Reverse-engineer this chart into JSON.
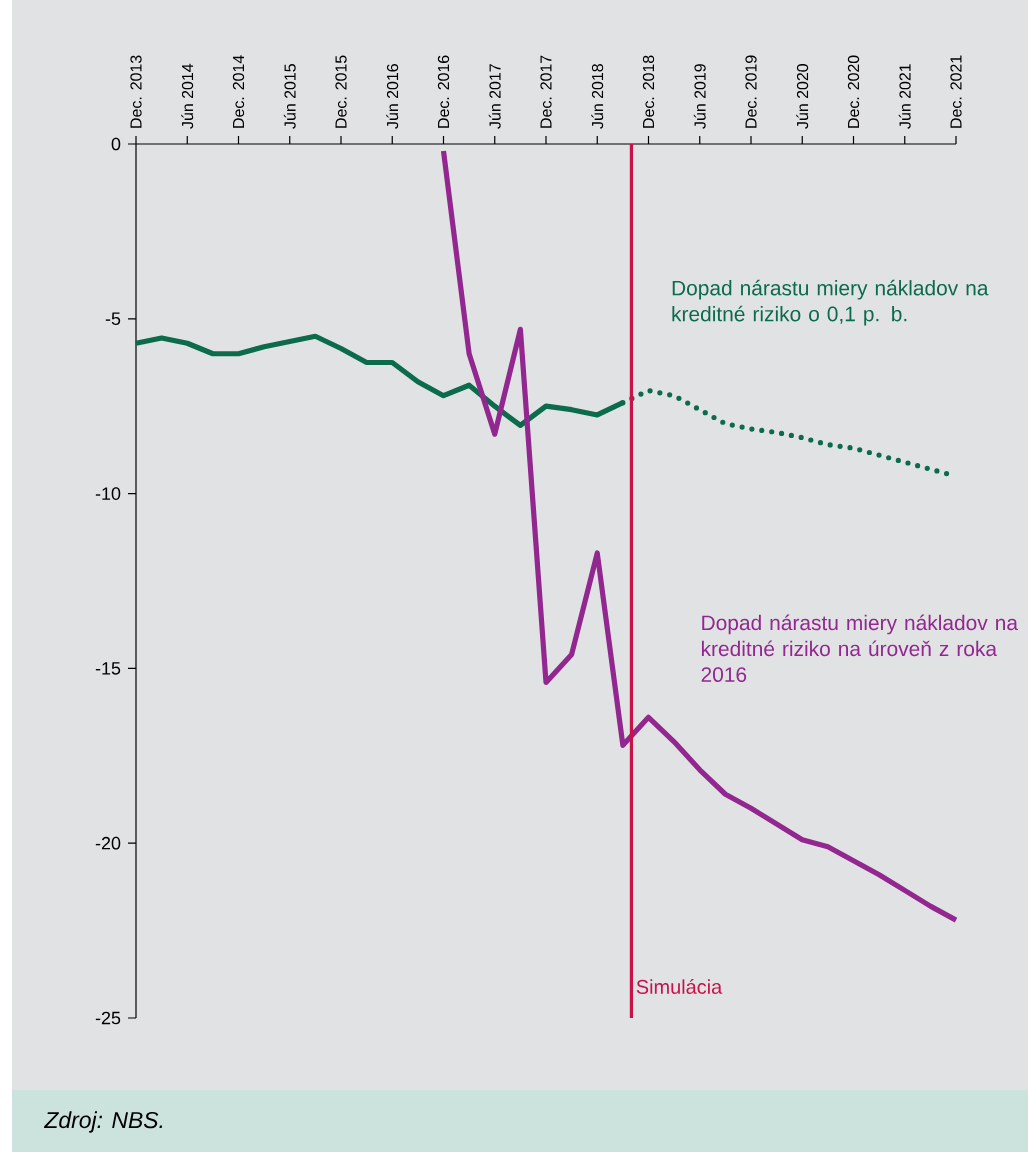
{
  "chart_data": {
    "type": "line",
    "xlim": [
      "2013-12",
      "2021-12"
    ],
    "ylim": [
      -25,
      0
    ],
    "xticks": [
      {
        "value": "2013-12",
        "label": "Dec. 2013"
      },
      {
        "value": "2014-06",
        "label": "Jún 2014"
      },
      {
        "value": "2014-12",
        "label": "Dec. 2014"
      },
      {
        "value": "2015-06",
        "label": "Jún 2015"
      },
      {
        "value": "2015-12",
        "label": "Dec. 2015"
      },
      {
        "value": "2016-06",
        "label": "Jún 2016"
      },
      {
        "value": "2016-12",
        "label": "Dec. 2016"
      },
      {
        "value": "2017-06",
        "label": "Jún 2017"
      },
      {
        "value": "2017-12",
        "label": "Dec. 2017"
      },
      {
        "value": "2018-06",
        "label": "Jún 2018"
      },
      {
        "value": "2018-12",
        "label": "Dec. 2018"
      },
      {
        "value": "2019-06",
        "label": "Jún 2019"
      },
      {
        "value": "2019-12",
        "label": "Dec. 2019"
      },
      {
        "value": "2020-06",
        "label": "Jún 2020"
      },
      {
        "value": "2020-12",
        "label": "Dec. 2020"
      },
      {
        "value": "2021-06",
        "label": "Jún 2021"
      },
      {
        "value": "2021-12",
        "label": "Dec. 2021"
      }
    ],
    "yticks": [
      0,
      -5,
      -10,
      -15,
      -20,
      -25
    ],
    "series": [
      {
        "color": "#0b6b4b",
        "line_style": "solid",
        "x": [
          "2013-12",
          "2014-03",
          "2014-06",
          "2014-09",
          "2014-12",
          "2015-03",
          "2015-06",
          "2015-09",
          "2015-12",
          "2016-03",
          "2016-06",
          "2016-09",
          "2016-12",
          "2017-03",
          "2017-06",
          "2017-09",
          "2017-12",
          "2018-03",
          "2018-06",
          "2018-09"
        ],
        "values": [
          -5.7,
          -5.55,
          -5.7,
          -6.0,
          -6.0,
          -5.8,
          -5.65,
          -5.5,
          -5.85,
          -6.25,
          -6.25,
          -6.8,
          -7.2,
          -6.9,
          -7.5,
          -8.05,
          -7.5,
          -7.6,
          -7.75,
          -7.4
        ]
      },
      {
        "name": "Dopad nárastu miery nákladov na kreditné riziko o 0,1 p. b.",
        "color": "#0b6b4b",
        "line_style": "dotted",
        "x": [
          "2018-09",
          "2018-12",
          "2019-03",
          "2019-06",
          "2019-09",
          "2019-12",
          "2020-03",
          "2020-06",
          "2020-09",
          "2020-12",
          "2021-03",
          "2021-06",
          "2021-09",
          "2021-12"
        ],
        "values": [
          -7.4,
          -7.05,
          -7.2,
          -7.6,
          -8.0,
          -8.15,
          -8.25,
          -8.4,
          -8.6,
          -8.7,
          -8.9,
          -9.1,
          -9.3,
          -9.5
        ]
      },
      {
        "name": "Dopad nárastu miery nákladov na kreditné riziko na úroveň z roka 2016",
        "color": "#92278f",
        "line_style": "solid",
        "x": [
          "2016-12",
          "2017-03",
          "2017-06",
          "2017-09",
          "2017-12",
          "2018-03",
          "2018-06",
          "2018-09",
          "2018-12",
          "2019-03",
          "2019-06",
          "2019-09",
          "2019-12",
          "2020-03",
          "2020-06",
          "2020-09",
          "2020-12",
          "2021-03",
          "2021-06",
          "2021-09",
          "2021-12"
        ],
        "values": [
          -0.2,
          -6.0,
          -8.3,
          -5.3,
          -15.4,
          -14.6,
          -11.7,
          -17.2,
          -16.4,
          -17.1,
          -17.9,
          -18.6,
          -19.0,
          -19.45,
          -19.9,
          -20.1,
          -20.5,
          -20.9,
          -21.35,
          -21.8,
          -22.2
        ]
      }
    ],
    "ref_lines": [
      {
        "axis": "x",
        "value": "2018-10",
        "label": "Simulácia",
        "color": "#c8134a"
      }
    ],
    "annotations": [
      "Zdroj: NBS."
    ]
  }
}
